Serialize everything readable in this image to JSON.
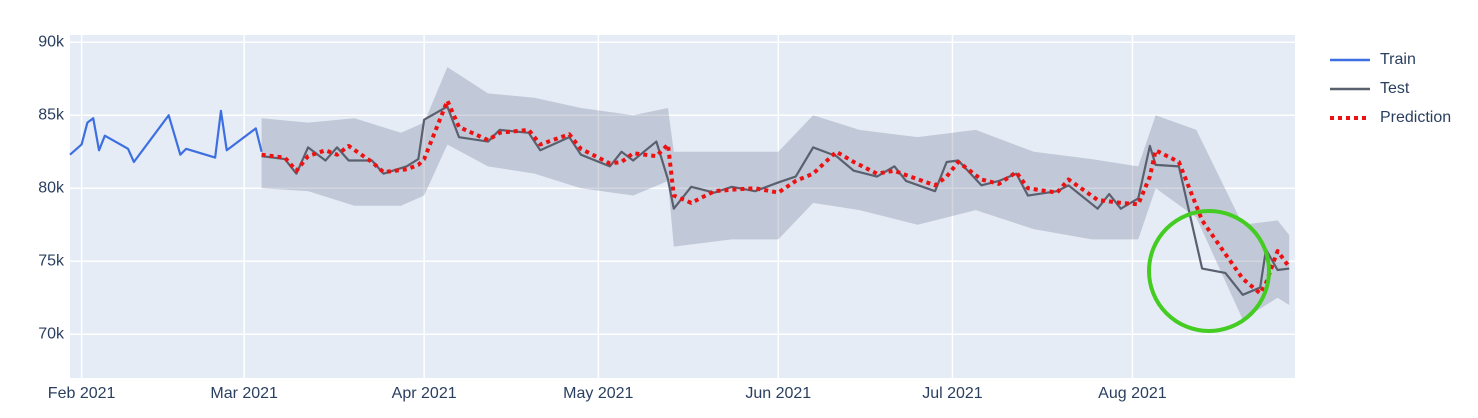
{
  "chart_data": {
    "type": "line",
    "xlim": [
      "2021-01-30",
      "2021-08-29"
    ],
    "ylim": [
      67000,
      90500
    ],
    "xticks": [
      {
        "value": "2021-02-01",
        "label": "Feb 2021"
      },
      {
        "value": "2021-03-01",
        "label": "Mar 2021"
      },
      {
        "value": "2021-04-01",
        "label": "Apr 2021"
      },
      {
        "value": "2021-05-01",
        "label": "May 2021"
      },
      {
        "value": "2021-06-01",
        "label": "Jun 2021"
      },
      {
        "value": "2021-07-01",
        "label": "Jul 2021"
      },
      {
        "value": "2021-08-01",
        "label": "Aug 2021"
      }
    ],
    "yticks": [
      {
        "value": 70000,
        "label": "70k"
      },
      {
        "value": 75000,
        "label": "75k"
      },
      {
        "value": 80000,
        "label": "80k"
      },
      {
        "value": 85000,
        "label": "85k"
      },
      {
        "value": 90000,
        "label": "90k"
      }
    ],
    "grid": true,
    "legend": "right",
    "band": {
      "color": "rgba(110,120,145,0.3)",
      "x": [
        "2021-03-04",
        "2021-03-12",
        "2021-03-20",
        "2021-03-28",
        "2021-04-01",
        "2021-04-05",
        "2021-04-12",
        "2021-04-20",
        "2021-04-28",
        "2021-05-07",
        "2021-05-13",
        "2021-05-14",
        "2021-05-24",
        "2021-06-01",
        "2021-06-07",
        "2021-06-15",
        "2021-06-25",
        "2021-07-05",
        "2021-07-15",
        "2021-07-25",
        "2021-08-02",
        "2021-08-05",
        "2021-08-12",
        "2021-08-20",
        "2021-08-26",
        "2021-08-28"
      ],
      "upper": [
        84800,
        84500,
        84800,
        83800,
        84500,
        88300,
        86500,
        86200,
        85500,
        85000,
        85500,
        82500,
        82500,
        82500,
        85000,
        84000,
        83500,
        84000,
        82500,
        82000,
        81500,
        85000,
        84000,
        77500,
        77800,
        76800
      ],
      "lower": [
        80000,
        79800,
        78800,
        78800,
        79500,
        83000,
        81500,
        81000,
        80000,
        79500,
        80500,
        76000,
        76500,
        76500,
        79000,
        78500,
        77500,
        78500,
        77200,
        76500,
        76500,
        80000,
        78000,
        71000,
        72500,
        72000
      ]
    },
    "series": [
      {
        "name": "Train",
        "color": "#3d6fe0",
        "dash": "solid",
        "x": [
          "2021-01-30",
          "2021-02-01",
          "2021-02-02",
          "2021-02-03",
          "2021-02-04",
          "2021-02-05",
          "2021-02-09",
          "2021-02-10",
          "2021-02-16",
          "2021-02-18",
          "2021-02-19",
          "2021-02-24",
          "2021-02-25",
          "2021-02-26",
          "2021-03-03",
          "2021-03-04"
        ],
        "values": [
          82300,
          83000,
          84500,
          84800,
          82600,
          83600,
          82700,
          81800,
          85000,
          82300,
          82700,
          82100,
          85300,
          82600,
          84100,
          82500
        ]
      },
      {
        "name": "Test",
        "color": "#5b606f",
        "dash": "solid",
        "x": [
          "2021-03-04",
          "2021-03-08",
          "2021-03-10",
          "2021-03-12",
          "2021-03-15",
          "2021-03-17",
          "2021-03-19",
          "2021-03-23",
          "2021-03-25",
          "2021-03-29",
          "2021-03-31",
          "2021-04-01",
          "2021-04-05",
          "2021-04-07",
          "2021-04-12",
          "2021-04-14",
          "2021-04-19",
          "2021-04-21",
          "2021-04-26",
          "2021-04-28",
          "2021-05-03",
          "2021-05-05",
          "2021-05-07",
          "2021-05-11",
          "2021-05-13",
          "2021-05-14",
          "2021-05-17",
          "2021-05-21",
          "2021-05-24",
          "2021-05-28",
          "2021-06-01",
          "2021-06-04",
          "2021-06-07",
          "2021-06-11",
          "2021-06-14",
          "2021-06-18",
          "2021-06-21",
          "2021-06-23",
          "2021-06-28",
          "2021-06-30",
          "2021-07-02",
          "2021-07-06",
          "2021-07-09",
          "2021-07-12",
          "2021-07-14",
          "2021-07-19",
          "2021-07-21",
          "2021-07-26",
          "2021-07-28",
          "2021-07-30",
          "2021-08-02",
          "2021-08-04",
          "2021-08-05",
          "2021-08-09",
          "2021-08-13",
          "2021-08-17",
          "2021-08-20",
          "2021-08-23",
          "2021-08-24",
          "2021-08-26",
          "2021-08-28"
        ],
        "values": [
          82200,
          82000,
          81000,
          82800,
          81900,
          82800,
          81900,
          81900,
          81000,
          81500,
          82000,
          84700,
          85600,
          83500,
          83200,
          84000,
          83800,
          82600,
          83500,
          82300,
          81500,
          82500,
          81900,
          83200,
          80600,
          78600,
          80100,
          79700,
          80100,
          79800,
          80400,
          80800,
          82800,
          82200,
          81200,
          80800,
          81500,
          80500,
          79800,
          81800,
          81900,
          80200,
          80500,
          81000,
          79500,
          79800,
          80200,
          78600,
          79600,
          78600,
          79300,
          82900,
          81600,
          81500,
          74500,
          74200,
          72700,
          73200,
          75800,
          74400,
          74500
        ]
      },
      {
        "name": "Prediction",
        "color": "#ee1111",
        "dash": "dot",
        "x": [
          "2021-03-04",
          "2021-03-08",
          "2021-03-10",
          "2021-03-12",
          "2021-03-15",
          "2021-03-17",
          "2021-03-19",
          "2021-03-23",
          "2021-03-25",
          "2021-03-29",
          "2021-03-31",
          "2021-04-01",
          "2021-04-05",
          "2021-04-07",
          "2021-04-12",
          "2021-04-14",
          "2021-04-19",
          "2021-04-21",
          "2021-04-26",
          "2021-04-28",
          "2021-05-03",
          "2021-05-05",
          "2021-05-07",
          "2021-05-11",
          "2021-05-13",
          "2021-05-14",
          "2021-05-17",
          "2021-05-21",
          "2021-05-24",
          "2021-05-28",
          "2021-06-01",
          "2021-06-04",
          "2021-06-07",
          "2021-06-11",
          "2021-06-14",
          "2021-06-18",
          "2021-06-21",
          "2021-06-23",
          "2021-06-28",
          "2021-06-30",
          "2021-07-02",
          "2021-07-06",
          "2021-07-09",
          "2021-07-12",
          "2021-07-14",
          "2021-07-19",
          "2021-07-21",
          "2021-07-26",
          "2021-07-28",
          "2021-07-30",
          "2021-08-02",
          "2021-08-04",
          "2021-08-05",
          "2021-08-09",
          "2021-08-13",
          "2021-08-17",
          "2021-08-20",
          "2021-08-23",
          "2021-08-24",
          "2021-08-26",
          "2021-08-28"
        ],
        "values": [
          82300,
          82100,
          81200,
          82200,
          82600,
          82300,
          82900,
          81800,
          81100,
          81300,
          81600,
          82000,
          86000,
          84200,
          83300,
          83800,
          84000,
          83000,
          83700,
          82700,
          81700,
          81800,
          82400,
          82200,
          83000,
          79500,
          79000,
          79800,
          79900,
          80000,
          79700,
          80500,
          81000,
          82500,
          81800,
          81000,
          81200,
          80900,
          80200,
          80800,
          81800,
          80600,
          80300,
          81100,
          80000,
          79700,
          80600,
          79200,
          79100,
          79000,
          78900,
          80800,
          82600,
          81800,
          77800,
          75500,
          73800,
          72800,
          73500,
          75700,
          74600
        ]
      }
    ]
  }
}
